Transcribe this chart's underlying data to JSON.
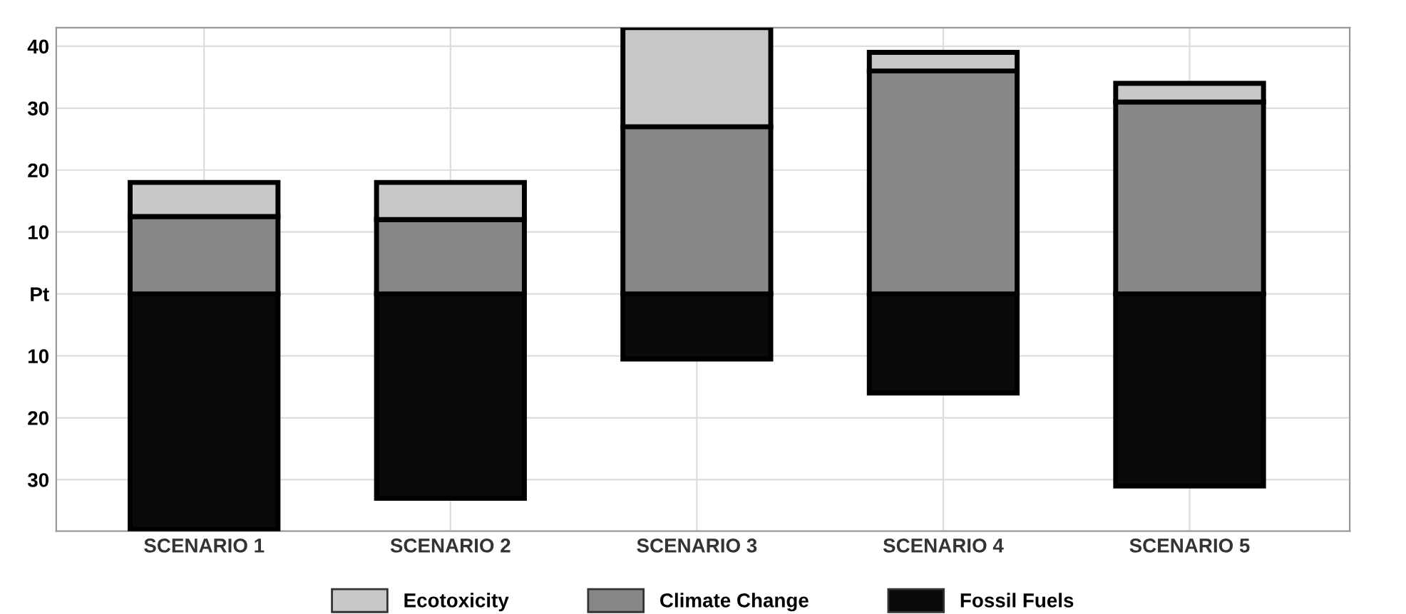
{
  "chart_data": {
    "type": "bar",
    "stacked": true,
    "categories": [
      "SCENARIO 1",
      "SCENARIO 2",
      "SCENARIO 3",
      "SCENARIO 4",
      "SCENARIO 5"
    ],
    "series": [
      {
        "name": "Fossil Fuels",
        "color": "#0a0a0a",
        "values": [
          -38,
          -33,
          -10.5,
          -16,
          -31
        ]
      },
      {
        "name": "Climate Change",
        "color": "#878787",
        "values": [
          12.5,
          12,
          27,
          36,
          31
        ]
      },
      {
        "name": "Ecotoxicity",
        "color": "#c8c8c8",
        "values": [
          5.5,
          6,
          16,
          3,
          3
        ]
      }
    ],
    "ylim": [
      -38.3,
      43
    ],
    "yticks": [
      40,
      30,
      20,
      10,
      {
        "value": 0,
        "label": "Pt"
      },
      {
        "value": -10,
        "label": "10"
      },
      {
        "value": -20,
        "label": "20"
      },
      {
        "value": -30,
        "label": "30"
      }
    ],
    "grid": true,
    "legend": "bottom"
  }
}
